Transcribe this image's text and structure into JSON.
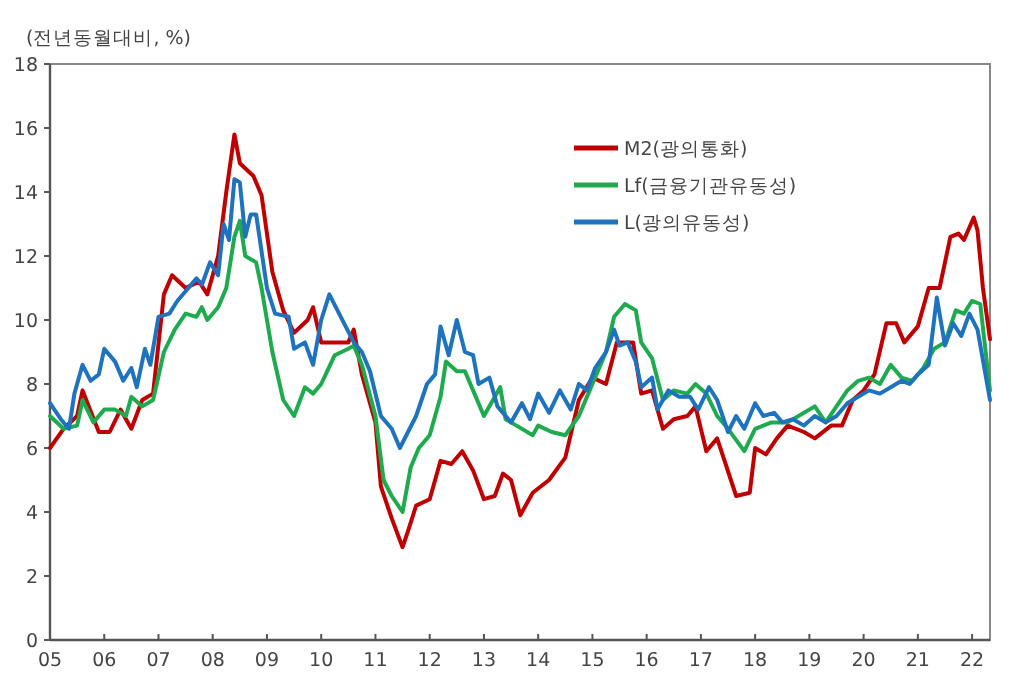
{
  "chart_data": {
    "type": "line",
    "ylabel": "(전년동월대비, %)",
    "xlim": [
      2005,
      2022.33
    ],
    "ylim": [
      0,
      18
    ],
    "xticks": [
      {
        "value": 2005,
        "label": "05"
      },
      {
        "value": 2006,
        "label": "06"
      },
      {
        "value": 2007,
        "label": "07"
      },
      {
        "value": 2008,
        "label": "08"
      },
      {
        "value": 2009,
        "label": "09"
      },
      {
        "value": 2010,
        "label": "10"
      },
      {
        "value": 2011,
        "label": "11"
      },
      {
        "value": 2012,
        "label": "12"
      },
      {
        "value": 2013,
        "label": "13"
      },
      {
        "value": 2014,
        "label": "14"
      },
      {
        "value": 2015,
        "label": "15"
      },
      {
        "value": 2016,
        "label": "16"
      },
      {
        "value": 2017,
        "label": "17"
      },
      {
        "value": 2018,
        "label": "18"
      },
      {
        "value": 2019,
        "label": "19"
      },
      {
        "value": 2020,
        "label": "20"
      },
      {
        "value": 2021,
        "label": "21"
      },
      {
        "value": 2022,
        "label": "22"
      }
    ],
    "yticks": [
      0,
      2,
      4,
      6,
      8,
      10,
      12,
      14,
      16,
      18
    ],
    "legend": "top right",
    "series": [
      {
        "name": "M2(광의통화)",
        "color": "#c00000",
        "x": [
          2005.0,
          2005.25,
          2005.5,
          2005.6,
          2005.9,
          2006.1,
          2006.3,
          2006.5,
          2006.7,
          2006.9,
          2007.1,
          2007.25,
          2007.5,
          2007.75,
          2007.9,
          2008.1,
          2008.25,
          2008.4,
          2008.5,
          2008.75,
          2008.9,
          2009.1,
          2009.3,
          2009.5,
          2009.75,
          2009.85,
          2010.0,
          2010.25,
          2010.5,
          2010.6,
          2010.75,
          2011.0,
          2011.1,
          2011.3,
          2011.5,
          2011.6,
          2011.75,
          2012.0,
          2012.2,
          2012.4,
          2012.6,
          2012.8,
          2013.0,
          2013.2,
          2013.35,
          2013.5,
          2013.67,
          2013.9,
          2014.2,
          2014.5,
          2014.75,
          2015.0,
          2015.25,
          2015.45,
          2015.75,
          2015.9,
          2016.1,
          2016.3,
          2016.5,
          2016.75,
          2016.9,
          2017.1,
          2017.3,
          2017.65,
          2017.9,
          2018.0,
          2018.2,
          2018.4,
          2018.6,
          2018.9,
          2019.1,
          2019.4,
          2019.6,
          2019.8,
          2020.0,
          2020.2,
          2020.42,
          2020.6,
          2020.75,
          2021.0,
          2021.2,
          2021.4,
          2021.6,
          2021.75,
          2021.85,
          2022.03,
          2022.1,
          2022.2,
          2022.33
        ],
        "values": [
          6.0,
          6.6,
          7.0,
          7.8,
          6.5,
          6.5,
          7.2,
          6.6,
          7.5,
          7.7,
          10.8,
          11.4,
          11.0,
          11.2,
          10.8,
          12.0,
          14.0,
          15.8,
          14.9,
          14.5,
          13.9,
          11.5,
          10.3,
          9.6,
          10.0,
          10.4,
          9.3,
          9.3,
          9.3,
          9.7,
          8.3,
          6.8,
          4.8,
          3.8,
          2.9,
          3.4,
          4.2,
          4.4,
          5.6,
          5.5,
          5.9,
          5.3,
          4.4,
          4.5,
          5.2,
          5.0,
          3.9,
          4.6,
          5.0,
          5.7,
          7.5,
          8.2,
          8.0,
          9.3,
          9.3,
          7.7,
          7.8,
          6.6,
          6.9,
          7.0,
          7.3,
          5.9,
          6.3,
          4.5,
          4.6,
          6.0,
          5.8,
          6.3,
          6.7,
          6.5,
          6.3,
          6.7,
          6.7,
          7.5,
          7.8,
          8.3,
          9.9,
          9.9,
          9.3,
          9.8,
          11.0,
          11.0,
          12.6,
          12.7,
          12.5,
          13.2,
          12.8,
          11.0,
          9.4
        ]
      },
      {
        "name": "Lf(금융기관유동성)",
        "color": "#1faa50",
        "x": [
          2005.0,
          2005.25,
          2005.5,
          2005.6,
          2005.8,
          2006.0,
          2006.2,
          2006.4,
          2006.5,
          2006.7,
          2006.9,
          2007.1,
          2007.3,
          2007.5,
          2007.7,
          2007.8,
          2007.9,
          2008.1,
          2008.25,
          2008.4,
          2008.5,
          2008.6,
          2008.8,
          2008.9,
          2009.1,
          2009.3,
          2009.5,
          2009.7,
          2009.85,
          2010.0,
          2010.25,
          2010.5,
          2010.6,
          2010.75,
          2011.0,
          2011.15,
          2011.3,
          2011.5,
          2011.65,
          2011.8,
          2012.0,
          2012.2,
          2012.3,
          2012.5,
          2012.65,
          2012.8,
          2013.0,
          2013.3,
          2013.4,
          2013.6,
          2013.9,
          2014.0,
          2014.25,
          2014.5,
          2014.75,
          2015.0,
          2015.25,
          2015.4,
          2015.6,
          2015.8,
          2015.9,
          2016.1,
          2016.3,
          2016.5,
          2016.75,
          2016.9,
          2017.1,
          2017.3,
          2017.5,
          2017.8,
          2018.0,
          2018.3,
          2018.6,
          2018.9,
          2019.1,
          2019.3,
          2019.5,
          2019.7,
          2019.9,
          2020.1,
          2020.3,
          2020.5,
          2020.7,
          2020.9,
          2021.1,
          2021.3,
          2021.5,
          2021.7,
          2021.85,
          2022.0,
          2022.15,
          2022.33
        ],
        "values": [
          7.0,
          6.6,
          6.7,
          7.5,
          6.8,
          7.2,
          7.2,
          7.0,
          7.6,
          7.3,
          7.5,
          9.0,
          9.7,
          10.2,
          10.1,
          10.4,
          10.0,
          10.4,
          11.0,
          12.6,
          13.1,
          12.0,
          11.8,
          11.0,
          9.0,
          7.5,
          7.0,
          7.9,
          7.7,
          8.0,
          8.9,
          9.1,
          9.2,
          8.6,
          7.0,
          5.0,
          4.5,
          4.0,
          5.4,
          6.0,
          6.4,
          7.6,
          8.7,
          8.4,
          8.4,
          7.8,
          7.0,
          7.9,
          6.9,
          6.7,
          6.4,
          6.7,
          6.5,
          6.4,
          7.0,
          8.0,
          9.0,
          10.1,
          10.5,
          10.3,
          9.3,
          8.8,
          7.5,
          7.8,
          7.7,
          8.0,
          7.7,
          7.0,
          6.6,
          5.9,
          6.6,
          6.8,
          6.8,
          7.1,
          7.3,
          6.8,
          7.3,
          7.8,
          8.1,
          8.2,
          8.0,
          8.6,
          8.2,
          8.1,
          8.5,
          9.1,
          9.3,
          10.3,
          10.2,
          10.6,
          10.5,
          7.8
        ]
      },
      {
        "name": "L(광의유동성)",
        "color": "#1f72bd",
        "x": [
          2005.0,
          2005.2,
          2005.35,
          2005.45,
          2005.6,
          2005.75,
          2005.9,
          2006.0,
          2006.2,
          2006.35,
          2006.5,
          2006.6,
          2006.75,
          2006.85,
          2007.0,
          2007.2,
          2007.35,
          2007.5,
          2007.7,
          2007.8,
          2007.95,
          2008.1,
          2008.2,
          2008.3,
          2008.4,
          2008.5,
          2008.6,
          2008.7,
          2008.8,
          2009.0,
          2009.15,
          2009.4,
          2009.5,
          2009.7,
          2009.85,
          2010.0,
          2010.15,
          2010.3,
          2010.45,
          2010.6,
          2010.75,
          2010.9,
          2011.1,
          2011.3,
          2011.45,
          2011.6,
          2011.75,
          2011.95,
          2012.1,
          2012.2,
          2012.35,
          2012.5,
          2012.65,
          2012.8,
          2012.9,
          2013.1,
          2013.25,
          2013.5,
          2013.7,
          2013.85,
          2014.0,
          2014.2,
          2014.4,
          2014.6,
          2014.75,
          2014.9,
          2015.05,
          2015.25,
          2015.4,
          2015.5,
          2015.65,
          2015.8,
          2015.9,
          2016.1,
          2016.2,
          2016.4,
          2016.6,
          2016.8,
          2016.95,
          2017.15,
          2017.3,
          2017.5,
          2017.65,
          2017.8,
          2018.0,
          2018.15,
          2018.35,
          2018.5,
          2018.7,
          2018.9,
          2019.1,
          2019.3,
          2019.5,
          2019.7,
          2019.9,
          2020.1,
          2020.3,
          2020.5,
          2020.7,
          2020.85,
          2021.0,
          2021.2,
          2021.35,
          2021.5,
          2021.65,
          2021.8,
          2021.95,
          2022.1,
          2022.33
        ],
        "values": [
          7.4,
          6.9,
          6.6,
          7.7,
          8.6,
          8.1,
          8.3,
          9.1,
          8.7,
          8.1,
          8.5,
          7.9,
          9.1,
          8.6,
          10.1,
          10.2,
          10.6,
          10.9,
          11.3,
          11.1,
          11.8,
          11.4,
          13.0,
          12.5,
          14.4,
          14.3,
          12.6,
          13.3,
          13.3,
          11.0,
          10.2,
          10.1,
          9.1,
          9.3,
          8.6,
          10.0,
          10.8,
          10.3,
          9.8,
          9.3,
          9.0,
          8.4,
          7.0,
          6.6,
          6.0,
          6.5,
          7.0,
          8.0,
          8.3,
          9.8,
          8.9,
          10.0,
          9.0,
          8.9,
          8.0,
          8.2,
          7.3,
          6.8,
          7.4,
          6.9,
          7.7,
          7.1,
          7.8,
          7.2,
          8.0,
          7.8,
          8.5,
          9.0,
          9.7,
          9.2,
          9.3,
          8.7,
          7.9,
          8.2,
          7.2,
          7.8,
          7.6,
          7.6,
          7.2,
          7.9,
          7.5,
          6.5,
          7.0,
          6.6,
          7.4,
          7.0,
          7.1,
          6.8,
          6.9,
          6.7,
          7.0,
          6.8,
          7.0,
          7.4,
          7.6,
          7.8,
          7.7,
          7.9,
          8.1,
          8.0,
          8.3,
          8.6,
          10.7,
          9.2,
          9.9,
          9.5,
          10.2,
          9.7,
          7.5
        ]
      }
    ]
  }
}
